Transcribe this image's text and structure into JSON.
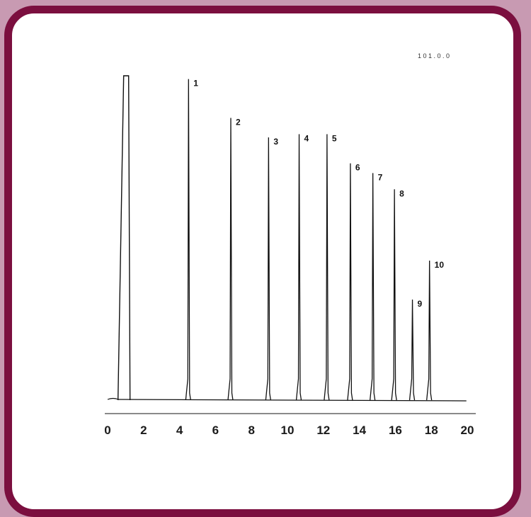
{
  "chart_data": {
    "type": "line",
    "title": "",
    "header_text": "1 0 1 . 0 . 0",
    "xlabel": "",
    "ylabel": "",
    "xlim": [
      0,
      20
    ],
    "ylim": [
      0,
      100
    ],
    "x_ticks": [
      "0",
      "2",
      "4",
      "6",
      "8",
      "10",
      "12",
      "14",
      "16",
      "18",
      "20"
    ],
    "grid": false,
    "line_color": "#111111",
    "baseline": 0,
    "solvent_peak": {
      "x": 1.05,
      "height": 100
    },
    "peaks": [
      {
        "label": "1",
        "x": 4.5,
        "height": 99
      },
      {
        "label": "2",
        "x": 6.85,
        "height": 87
      },
      {
        "label": "3",
        "x": 8.95,
        "height": 81
      },
      {
        "label": "4",
        "x": 10.65,
        "height": 82
      },
      {
        "label": "5",
        "x": 12.2,
        "height": 82
      },
      {
        "label": "6",
        "x": 13.5,
        "height": 73
      },
      {
        "label": "7",
        "x": 14.75,
        "height": 70
      },
      {
        "label": "8",
        "x": 15.95,
        "height": 65
      },
      {
        "label": "9",
        "x": 16.95,
        "height": 31
      },
      {
        "label": "10",
        "x": 17.9,
        "height": 43
      }
    ]
  }
}
